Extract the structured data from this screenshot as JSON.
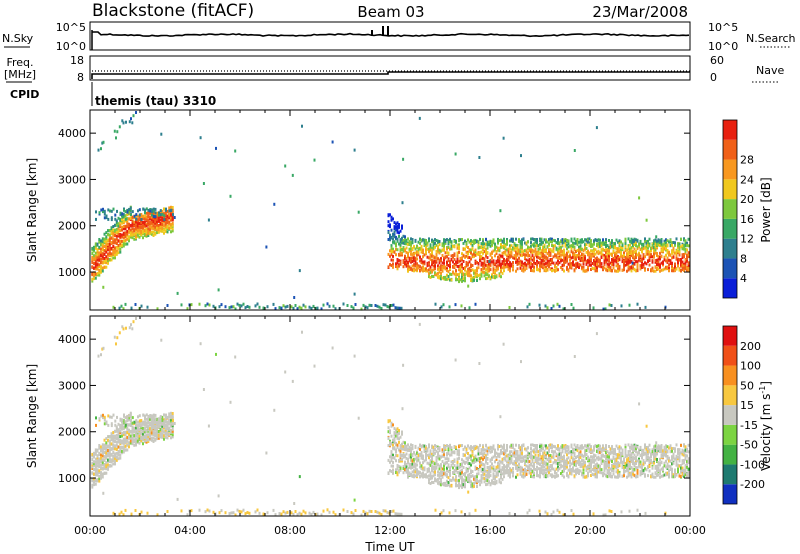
{
  "header": {
    "station": "Blackstone (fitACF)",
    "beam": "Beam 03",
    "date": "23/Mar/2008"
  },
  "top_panels": {
    "nsky": {
      "label": "N.Sky",
      "ticks": [
        "10^5",
        "10^0"
      ],
      "right_label": "N.Search",
      "right_ticks": [
        "10^5",
        "10^0"
      ]
    },
    "freq": {
      "label_line1": "Freq.",
      "label_line2": "[MHz]",
      "ticks": [
        "18",
        "8"
      ],
      "right_label": "Nave",
      "right_ticks": [
        "60",
        "0"
      ]
    },
    "cpid": {
      "label": "CPID",
      "value": "themis (tau) 3310"
    }
  },
  "chart_data": [
    {
      "type": "heatmap",
      "title": "",
      "ylabel": "Slant Range [km]",
      "xlabel": "",
      "xlim": [
        0,
        24
      ],
      "ylim": [
        180,
        4500
      ],
      "yticks": [
        "1000",
        "2000",
        "3000",
        "4000"
      ],
      "colorbar": {
        "label": "Power [dB]",
        "ticks": [
          "4",
          "8",
          "12",
          "16",
          "20",
          "24",
          "28"
        ],
        "colors": [
          "#0a1fd8",
          "#1c53b5",
          "#2e7f8e",
          "#39a865",
          "#7dc83d",
          "#f0c81e",
          "#f89820",
          "#f06018",
          "#e82010"
        ]
      }
    },
    {
      "type": "heatmap",
      "title": "",
      "ylabel": "Slant Range [km]",
      "xlabel": "Time UT",
      "xlim": [
        0,
        24
      ],
      "ylim": [
        180,
        4500
      ],
      "yticks": [
        "1000",
        "2000",
        "3000",
        "4000"
      ],
      "xticks": [
        "00:00",
        "04:00",
        "08:00",
        "12:00",
        "16:00",
        "20:00",
        "00:00"
      ],
      "colorbar": {
        "label": "Velocity [m s",
        "label_sup": "-1",
        "label_end": "]",
        "ticks": [
          "200",
          "100",
          "50",
          "15",
          "-15",
          "-50",
          "-100",
          "-200"
        ],
        "colors": [
          "#1030c0",
          "#1e7a70",
          "#43b243",
          "#7cd442",
          "#c8c8c0",
          "#f8c840",
          "#f89020",
          "#f05018",
          "#e01010"
        ]
      }
    }
  ]
}
